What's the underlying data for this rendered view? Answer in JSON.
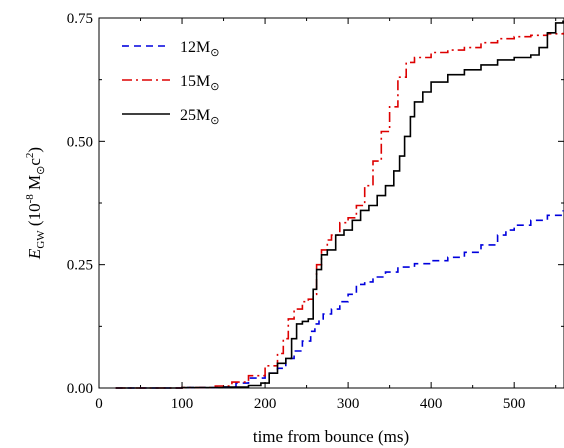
{
  "chart_data": {
    "type": "line",
    "xlabel": "time from bounce (ms)",
    "ylabel": {
      "main": "E",
      "sub": "GW",
      "rest": " (10",
      "exp": "-8",
      "unit": " M",
      "sun": "⊙",
      "c": "c",
      "c_exp": "2",
      "close": ")"
    },
    "xlim": [
      0,
      560
    ],
    "ylim": [
      0,
      0.75
    ],
    "xticks": [
      0,
      100,
      200,
      300,
      400,
      500
    ],
    "yticks": [
      0.0,
      0.25,
      0.5,
      0.75
    ],
    "ytick_labels": [
      "0.00",
      "0.25",
      "0.50",
      "0.75"
    ],
    "legend_position": "top-left",
    "series": [
      {
        "name": "12M",
        "name_sub": "⊙",
        "color": "#0000dd",
        "style": "dashed",
        "x": [
          20,
          100,
          150,
          165,
          180,
          200,
          215,
          225,
          235,
          245,
          255,
          260,
          265,
          270,
          280,
          290,
          300,
          310,
          320,
          330,
          345,
          360,
          380,
          400,
          420,
          440,
          460,
          480,
          490,
          500,
          520,
          540,
          560
        ],
        "y": [
          0.0,
          0.001,
          0.002,
          0.01,
          0.02,
          0.03,
          0.04,
          0.06,
          0.075,
          0.095,
          0.115,
          0.13,
          0.14,
          0.15,
          0.16,
          0.175,
          0.19,
          0.21,
          0.215,
          0.225,
          0.235,
          0.245,
          0.252,
          0.258,
          0.265,
          0.275,
          0.29,
          0.31,
          0.32,
          0.33,
          0.34,
          0.35,
          0.36
        ]
      },
      {
        "name": "15M",
        "name_sub": "⊙",
        "color": "#dd0000",
        "style": "dashdot",
        "x": [
          20,
          100,
          140,
          160,
          180,
          200,
          215,
          222,
          228,
          235,
          245,
          252,
          258,
          262,
          268,
          275,
          280,
          290,
          300,
          310,
          320,
          330,
          340,
          350,
          360,
          370,
          380,
          400,
          420,
          440,
          460,
          480,
          500,
          520,
          540,
          560
        ],
        "y": [
          0.0,
          0.001,
          0.004,
          0.012,
          0.025,
          0.045,
          0.07,
          0.1,
          0.14,
          0.16,
          0.175,
          0.18,
          0.19,
          0.25,
          0.28,
          0.3,
          0.31,
          0.335,
          0.345,
          0.37,
          0.41,
          0.46,
          0.52,
          0.57,
          0.63,
          0.66,
          0.67,
          0.68,
          0.685,
          0.69,
          0.7,
          0.708,
          0.712,
          0.715,
          0.718,
          0.72
        ]
      },
      {
        "name": "25M",
        "name_sub": "⊙",
        "color": "#000000",
        "style": "solid",
        "x": [
          20,
          100,
          150,
          180,
          195,
          205,
          215,
          225,
          232,
          238,
          245,
          252,
          258,
          262,
          268,
          275,
          285,
          295,
          305,
          315,
          325,
          335,
          345,
          355,
          362,
          368,
          375,
          380,
          390,
          400,
          420,
          440,
          460,
          480,
          500,
          520,
          530,
          540,
          550,
          560
        ],
        "y": [
          0.0,
          0.001,
          0.002,
          0.005,
          0.01,
          0.03,
          0.05,
          0.06,
          0.1,
          0.13,
          0.135,
          0.14,
          0.2,
          0.24,
          0.27,
          0.28,
          0.31,
          0.32,
          0.34,
          0.36,
          0.37,
          0.39,
          0.41,
          0.44,
          0.47,
          0.51,
          0.55,
          0.58,
          0.6,
          0.62,
          0.635,
          0.645,
          0.655,
          0.665,
          0.67,
          0.675,
          0.69,
          0.72,
          0.74,
          0.745
        ]
      }
    ]
  }
}
